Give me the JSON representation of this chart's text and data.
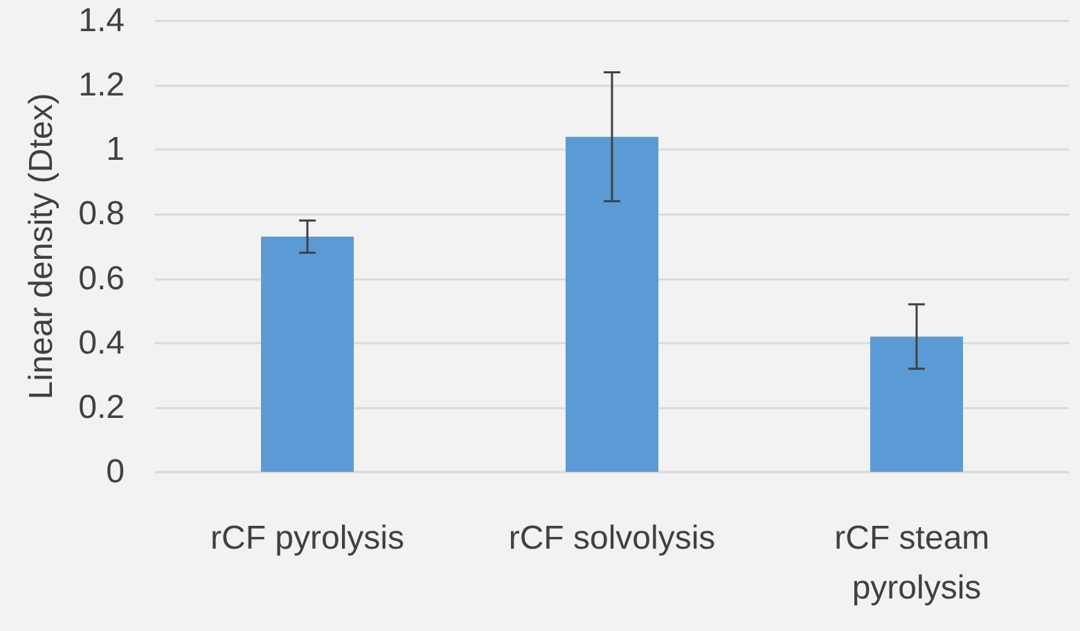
{
  "chart_data": {
    "type": "bar",
    "ylabel": "Linear density (Dtex)",
    "categories": [
      "rCF pyrolysis",
      "rCF solvolysis",
      "rCF steam pyrolysis"
    ],
    "values": [
      0.73,
      1.04,
      0.42
    ],
    "errors": [
      0.05,
      0.2,
      0.1
    ],
    "color": "#5b9bd5",
    "ylim": [
      0,
      1.4
    ],
    "yticks": [
      0,
      0.2,
      0.4,
      0.6,
      0.8,
      1,
      1.2,
      1.4
    ],
    "grid": "y"
  }
}
